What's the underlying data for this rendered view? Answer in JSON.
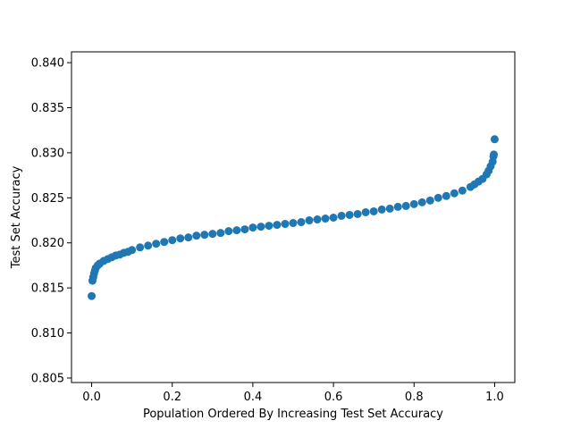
{
  "chart_data": {
    "type": "scatter",
    "title": "",
    "xlabel": "Population Ordered By Increasing Test Set Accuracy",
    "ylabel": "Test Set Accuracy",
    "xlim": [
      -0.05,
      1.05
    ],
    "ylim": [
      0.8045,
      0.8412
    ],
    "x_ticks": [
      0.0,
      0.2,
      0.4,
      0.6,
      0.8,
      1.0
    ],
    "x_tick_labels": [
      "0.0",
      "0.2",
      "0.4",
      "0.6",
      "0.8",
      "1.0"
    ],
    "y_ticks": [
      0.805,
      0.81,
      0.815,
      0.82,
      0.825,
      0.83,
      0.835,
      0.84
    ],
    "y_tick_labels": [
      "0.805",
      "0.810",
      "0.815",
      "0.820",
      "0.825",
      "0.830",
      "0.835",
      "0.840"
    ],
    "grid": false,
    "marker_color": "#1f77b4",
    "series": [
      {
        "points": [
          [
            0.0,
            0.8141
          ],
          [
            0.002,
            0.8158
          ],
          [
            0.004,
            0.8162
          ],
          [
            0.006,
            0.8166
          ],
          [
            0.008,
            0.8169
          ],
          [
            0.01,
            0.8172
          ],
          [
            0.015,
            0.8175
          ],
          [
            0.02,
            0.8177
          ],
          [
            0.03,
            0.818
          ],
          [
            0.04,
            0.8182
          ],
          [
            0.05,
            0.8184
          ],
          [
            0.06,
            0.8186
          ],
          [
            0.07,
            0.8187
          ],
          [
            0.08,
            0.8189
          ],
          [
            0.09,
            0.819
          ],
          [
            0.1,
            0.8192
          ],
          [
            0.12,
            0.8195
          ],
          [
            0.14,
            0.8197
          ],
          [
            0.16,
            0.8199
          ],
          [
            0.18,
            0.8201
          ],
          [
            0.2,
            0.8203
          ],
          [
            0.22,
            0.8205
          ],
          [
            0.24,
            0.8206
          ],
          [
            0.26,
            0.8208
          ],
          [
            0.28,
            0.8209
          ],
          [
            0.3,
            0.821
          ],
          [
            0.32,
            0.8211
          ],
          [
            0.34,
            0.8213
          ],
          [
            0.36,
            0.8214
          ],
          [
            0.38,
            0.8215
          ],
          [
            0.4,
            0.8217
          ],
          [
            0.42,
            0.8218
          ],
          [
            0.44,
            0.8219
          ],
          [
            0.46,
            0.822
          ],
          [
            0.48,
            0.8221
          ],
          [
            0.5,
            0.8222
          ],
          [
            0.52,
            0.8223
          ],
          [
            0.54,
            0.8225
          ],
          [
            0.56,
            0.8226
          ],
          [
            0.58,
            0.8227
          ],
          [
            0.6,
            0.8228
          ],
          [
            0.62,
            0.823
          ],
          [
            0.64,
            0.8231
          ],
          [
            0.66,
            0.8232
          ],
          [
            0.68,
            0.8234
          ],
          [
            0.7,
            0.8235
          ],
          [
            0.72,
            0.8237
          ],
          [
            0.74,
            0.8238
          ],
          [
            0.76,
            0.824
          ],
          [
            0.78,
            0.8241
          ],
          [
            0.8,
            0.8243
          ],
          [
            0.82,
            0.8245
          ],
          [
            0.84,
            0.8247
          ],
          [
            0.86,
            0.825
          ],
          [
            0.88,
            0.8252
          ],
          [
            0.9,
            0.8255
          ],
          [
            0.92,
            0.8258
          ],
          [
            0.94,
            0.8262
          ],
          [
            0.95,
            0.8265
          ],
          [
            0.96,
            0.8268
          ],
          [
            0.97,
            0.8271
          ],
          [
            0.98,
            0.8276
          ],
          [
            0.985,
            0.828
          ],
          [
            0.99,
            0.8285
          ],
          [
            0.995,
            0.829
          ],
          [
            0.997,
            0.8296
          ],
          [
            0.998,
            0.8298
          ],
          [
            1.0,
            0.8315
          ]
        ]
      }
    ]
  }
}
